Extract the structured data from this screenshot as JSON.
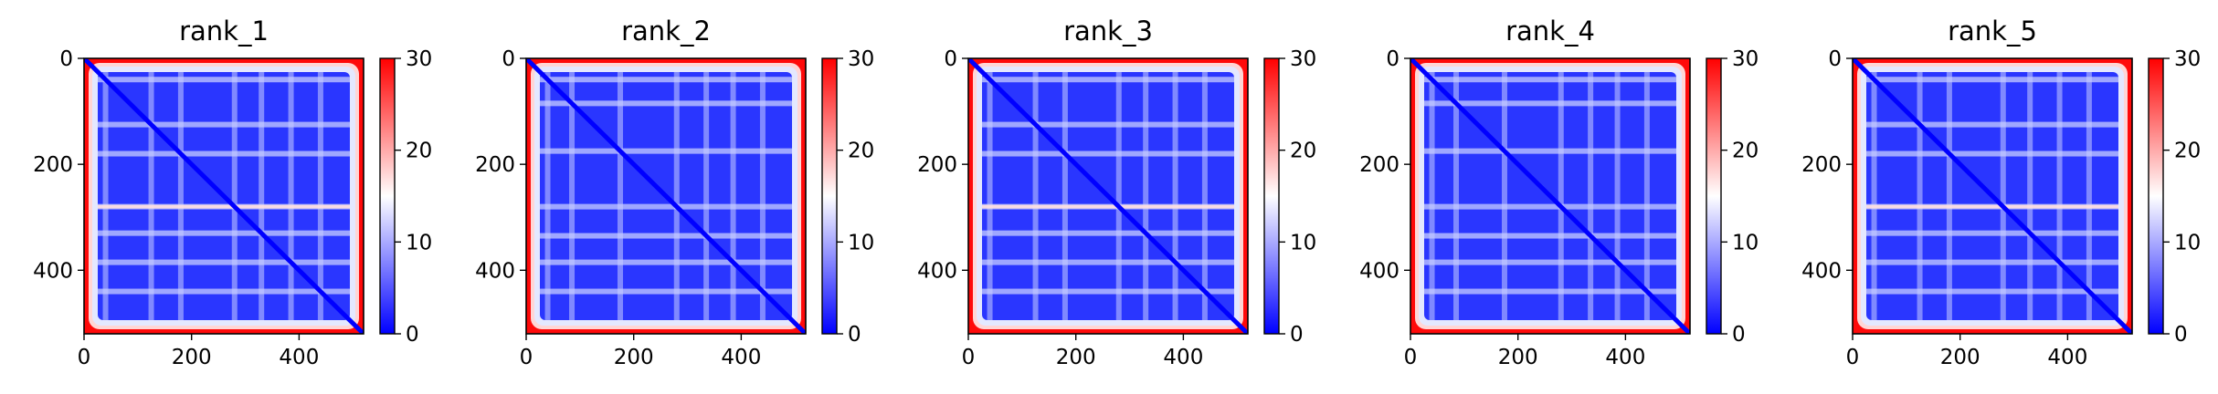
{
  "chart_data": [
    {
      "type": "heatmap",
      "title": "rank_1",
      "x_ticks": [
        "0",
        "200",
        "400"
      ],
      "y_ticks": [
        "0",
        "200",
        "400"
      ],
      "xlim": [
        0,
        520
      ],
      "ylim": [
        520,
        0
      ],
      "grid": false,
      "colorbar": {
        "ticks": [
          "0",
          "10",
          "20",
          "30"
        ],
        "range": [
          0,
          30
        ],
        "colors": [
          "#0000ff",
          "#ffffff",
          "#ff0000"
        ]
      },
      "bands": [
        40,
        125,
        180,
        280,
        330,
        385,
        440
      ]
    },
    {
      "type": "heatmap",
      "title": "rank_2",
      "x_ticks": [
        "0",
        "200",
        "400"
      ],
      "y_ticks": [
        "0",
        "200",
        "400"
      ],
      "xlim": [
        0,
        520
      ],
      "ylim": [
        520,
        0
      ],
      "grid": false,
      "colorbar": {
        "ticks": [
          "0",
          "10",
          "20",
          "30"
        ],
        "range": [
          0,
          30
        ],
        "colors": [
          "#0000ff",
          "#ffffff",
          "#ff0000"
        ]
      },
      "bands": [
        40,
        85,
        175,
        280,
        335,
        385,
        440
      ]
    },
    {
      "type": "heatmap",
      "title": "rank_3",
      "x_ticks": [
        "0",
        "200",
        "400"
      ],
      "y_ticks": [
        "0",
        "200",
        "400"
      ],
      "xlim": [
        0,
        520
      ],
      "ylim": [
        520,
        0
      ],
      "grid": false,
      "colorbar": {
        "ticks": [
          "0",
          "10",
          "20",
          "30"
        ],
        "range": [
          0,
          30
        ],
        "colors": [
          "#0000ff",
          "#ffffff",
          "#ff0000"
        ]
      },
      "bands": [
        40,
        125,
        180,
        280,
        330,
        385,
        440
      ]
    },
    {
      "type": "heatmap",
      "title": "rank_4",
      "x_ticks": [
        "0",
        "200",
        "400"
      ],
      "y_ticks": [
        "0",
        "200",
        "400"
      ],
      "xlim": [
        0,
        520
      ],
      "ylim": [
        520,
        0
      ],
      "grid": false,
      "colorbar": {
        "ticks": [
          "0",
          "10",
          "20",
          "30"
        ],
        "range": [
          0,
          30
        ],
        "colors": [
          "#0000ff",
          "#ffffff",
          "#ff0000"
        ]
      },
      "bands": [
        40,
        85,
        175,
        280,
        335,
        385,
        440
      ]
    },
    {
      "type": "heatmap",
      "title": "rank_5",
      "x_ticks": [
        "0",
        "200",
        "400"
      ],
      "y_ticks": [
        "0",
        "200",
        "400"
      ],
      "xlim": [
        0,
        520
      ],
      "ylim": [
        520,
        0
      ],
      "grid": false,
      "colorbar": {
        "ticks": [
          "0",
          "10",
          "20",
          "30"
        ],
        "range": [
          0,
          30
        ],
        "colors": [
          "#0000ff",
          "#ffffff",
          "#ff0000"
        ]
      },
      "bands": [
        40,
        125,
        180,
        280,
        330,
        385,
        440
      ]
    }
  ]
}
